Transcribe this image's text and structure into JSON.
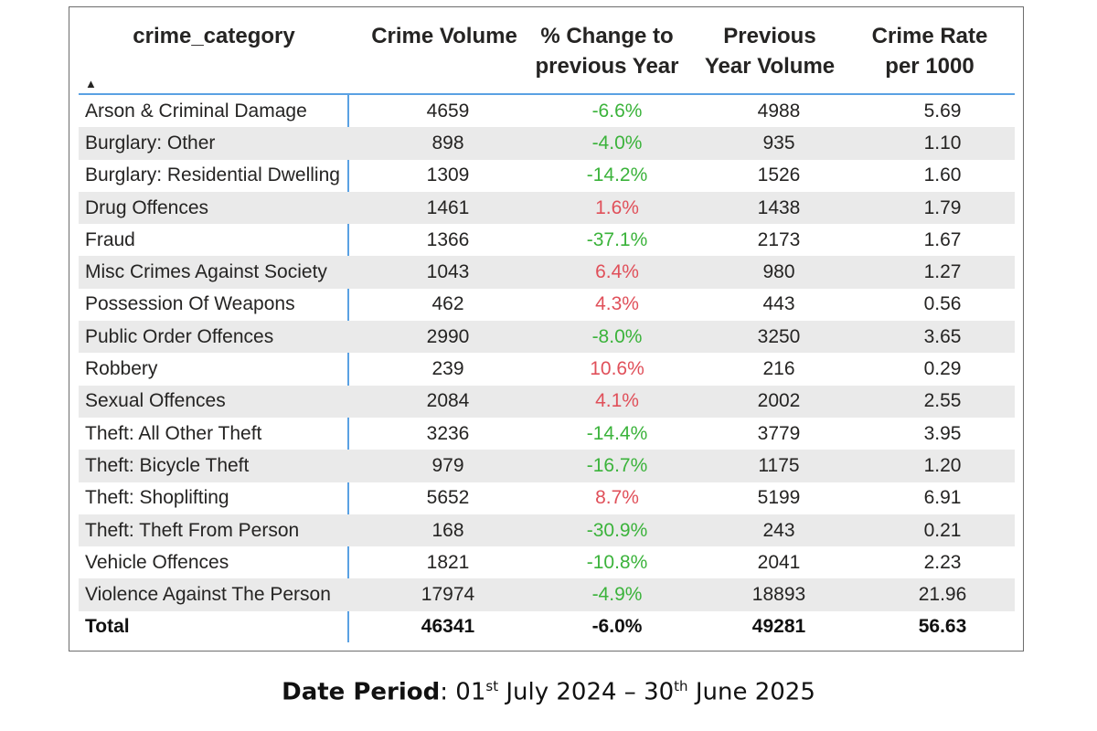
{
  "table": {
    "headers": {
      "category": "crime_category",
      "volume": "Crime Volume",
      "change_line1": "% Change to",
      "change_line2": "previous Year",
      "prev_line1": "Previous",
      "prev_line2": "Year Volume",
      "rate_line1": "Crime Rate",
      "rate_line2": "per 1000"
    },
    "sort_indicator": "▲",
    "colors": {
      "negative_change": "#3bb33b",
      "positive_change": "#e0505a",
      "divider": "#5aa1e3"
    },
    "rows": [
      {
        "category": "Arson & Criminal Damage",
        "volume": "4659",
        "change": "-6.6%",
        "direction": "neg",
        "previous": "4988",
        "rate": "5.69"
      },
      {
        "category": "Burglary: Other",
        "volume": "898",
        "change": "-4.0%",
        "direction": "neg",
        "previous": "935",
        "rate": "1.10"
      },
      {
        "category": "Burglary: Residential Dwelling",
        "volume": "1309",
        "change": "-14.2%",
        "direction": "neg",
        "previous": "1526",
        "rate": "1.60"
      },
      {
        "category": "Drug Offences",
        "volume": "1461",
        "change": "1.6%",
        "direction": "pos",
        "previous": "1438",
        "rate": "1.79"
      },
      {
        "category": "Fraud",
        "volume": "1366",
        "change": "-37.1%",
        "direction": "neg",
        "previous": "2173",
        "rate": "1.67"
      },
      {
        "category": "Misc Crimes Against Society",
        "volume": "1043",
        "change": "6.4%",
        "direction": "pos",
        "previous": "980",
        "rate": "1.27"
      },
      {
        "category": "Possession Of Weapons",
        "volume": "462",
        "change": "4.3%",
        "direction": "pos",
        "previous": "443",
        "rate": "0.56"
      },
      {
        "category": "Public Order Offences",
        "volume": "2990",
        "change": "-8.0%",
        "direction": "neg",
        "previous": "3250",
        "rate": "3.65"
      },
      {
        "category": "Robbery",
        "volume": "239",
        "change": "10.6%",
        "direction": "pos",
        "previous": "216",
        "rate": "0.29"
      },
      {
        "category": "Sexual Offences",
        "volume": "2084",
        "change": "4.1%",
        "direction": "pos",
        "previous": "2002",
        "rate": "2.55"
      },
      {
        "category": "Theft: All Other Theft",
        "volume": "3236",
        "change": "-14.4%",
        "direction": "neg",
        "previous": "3779",
        "rate": "3.95"
      },
      {
        "category": "Theft: Bicycle Theft",
        "volume": "979",
        "change": "-16.7%",
        "direction": "neg",
        "previous": "1175",
        "rate": "1.20"
      },
      {
        "category": "Theft: Shoplifting",
        "volume": "5652",
        "change": "8.7%",
        "direction": "pos",
        "previous": "5199",
        "rate": "6.91"
      },
      {
        "category": "Theft: Theft From Person",
        "volume": "168",
        "change": "-30.9%",
        "direction": "neg",
        "previous": "243",
        "rate": "0.21"
      },
      {
        "category": "Vehicle Offences",
        "volume": "1821",
        "change": "-10.8%",
        "direction": "neg",
        "previous": "2041",
        "rate": "2.23"
      },
      {
        "category": "Violence Against The Person",
        "volume": "17974",
        "change": "-4.9%",
        "direction": "neg",
        "previous": "18893",
        "rate": "21.96"
      }
    ],
    "total": {
      "category": "Total",
      "volume": "46341",
      "change": "-6.0%",
      "previous": "49281",
      "rate": "56.63"
    }
  },
  "footer": {
    "label": "Date Period",
    "separator": ":",
    "start_day": "01",
    "start_suffix": "st",
    "start_rest": "July 2024 – 30",
    "end_suffix": "th",
    "end_rest": "June 2025"
  }
}
